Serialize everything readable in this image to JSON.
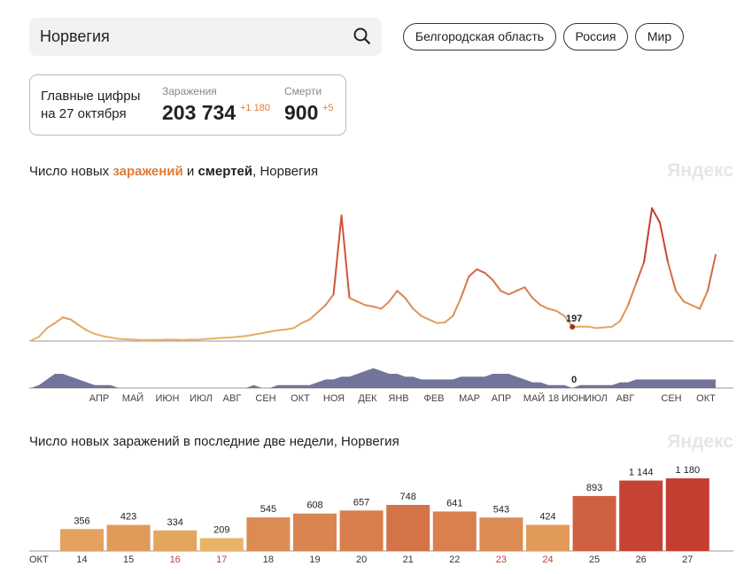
{
  "search": {
    "value": "Норвегия",
    "icon": "search-icon"
  },
  "regions": [
    "Белгородская область",
    "Россия",
    "Мир"
  ],
  "summary": {
    "label_line1": "Главные цифры",
    "label_line2": "на 27 октября",
    "cases_caption": "Заражения",
    "cases": "203 734",
    "cases_delta": "+1 180",
    "deaths_caption": "Смерти",
    "deaths": "900",
    "deaths_delta": "+5"
  },
  "colors": {
    "accent": "#e07b39",
    "low": "#e9b566",
    "high": "#c43c30",
    "deaths": "#5a5c8a"
  },
  "chart1": {
    "title_pre": "Число новых ",
    "title_cases": "заражений",
    "title_mid": " и ",
    "title_deaths": "смертей",
    "title_post": ", Норвегия",
    "watermark": "Яндекс"
  },
  "chart2": {
    "title": "Число новых заражений в последние две недели, Норвегия",
    "watermark": "Яндекс"
  },
  "chart_data": [
    {
      "type": "line",
      "series": [
        {
          "values": [
            5,
            60,
            180,
            250,
            330,
            300,
            220,
            150,
            100,
            70,
            50,
            30,
            25,
            20,
            15,
            15,
            15,
            20,
            20,
            15,
            20,
            20,
            30,
            35,
            45,
            50,
            60,
            70,
            90,
            110,
            130,
            150,
            160,
            180,
            250,
            300,
            400,
            500,
            650,
            1750,
            600,
            550,
            500,
            480,
            450,
            550,
            700,
            600,
            450,
            350,
            300,
            250,
            260,
            350,
            600,
            900,
            1000,
            950,
            850,
            700,
            650,
            700,
            750,
            600,
            500,
            450,
            420,
            350,
            197,
            200,
            200,
            180,
            190,
            200,
            280,
            500,
            800,
            1100,
            1850,
            1650,
            1100,
            700,
            550,
            500,
            450,
            700,
            1200
          ]
        },
        {
          "values": [
            0,
            1,
            3,
            5,
            5,
            4,
            3,
            2,
            1,
            1,
            1,
            0,
            0,
            0,
            0,
            0,
            0,
            0,
            0,
            0,
            0,
            0,
            0,
            0,
            0,
            0,
            0,
            0,
            1,
            0,
            0,
            1,
            1,
            1,
            1,
            1,
            2,
            3,
            3,
            4,
            4,
            5,
            6,
            7,
            6,
            5,
            5,
            4,
            4,
            3,
            3,
            3,
            3,
            3,
            4,
            4,
            4,
            4,
            5,
            5,
            5,
            4,
            3,
            2,
            2,
            1,
            1,
            1,
            0,
            1,
            1,
            1,
            1,
            1,
            2,
            2,
            3,
            3,
            3,
            3,
            3,
            3,
            3,
            3,
            3,
            3,
            3
          ]
        }
      ],
      "annotations": [
        {
          "series": 0,
          "index": 68,
          "label": "197"
        },
        {
          "series": 1,
          "index": 68,
          "label": "0"
        }
      ],
      "x_ticks": [
        "АПР",
        "МАЙ",
        "ИЮН",
        "ИЮЛ",
        "АВГ",
        "СЕН",
        "ОКТ",
        "НОЯ",
        "ДЕК",
        "ЯНВ",
        "ФЕВ",
        "МАР",
        "АПР",
        "МАЙ",
        "18 ИЮН",
        "ИЮЛ",
        "АВГ",
        "СЕН",
        "ОКТ"
      ]
    },
    {
      "type": "bar",
      "xlabel": "ОКТ",
      "categories": [
        "14",
        "15",
        "16",
        "17",
        "18",
        "19",
        "20",
        "21",
        "22",
        "23",
        "24",
        "25",
        "26",
        "27"
      ],
      "values": [
        356,
        423,
        334,
        209,
        545,
        608,
        657,
        748,
        641,
        543,
        424,
        893,
        1144,
        1180
      ],
      "value_labels": [
        "356",
        "423",
        "334",
        "209",
        "545",
        "608",
        "657",
        "748",
        "641",
        "543",
        "424",
        "893",
        "1 144",
        "1 180"
      ],
      "weekend": [
        false,
        false,
        true,
        true,
        false,
        false,
        false,
        false,
        false,
        true,
        true,
        false,
        false,
        false
      ]
    }
  ]
}
